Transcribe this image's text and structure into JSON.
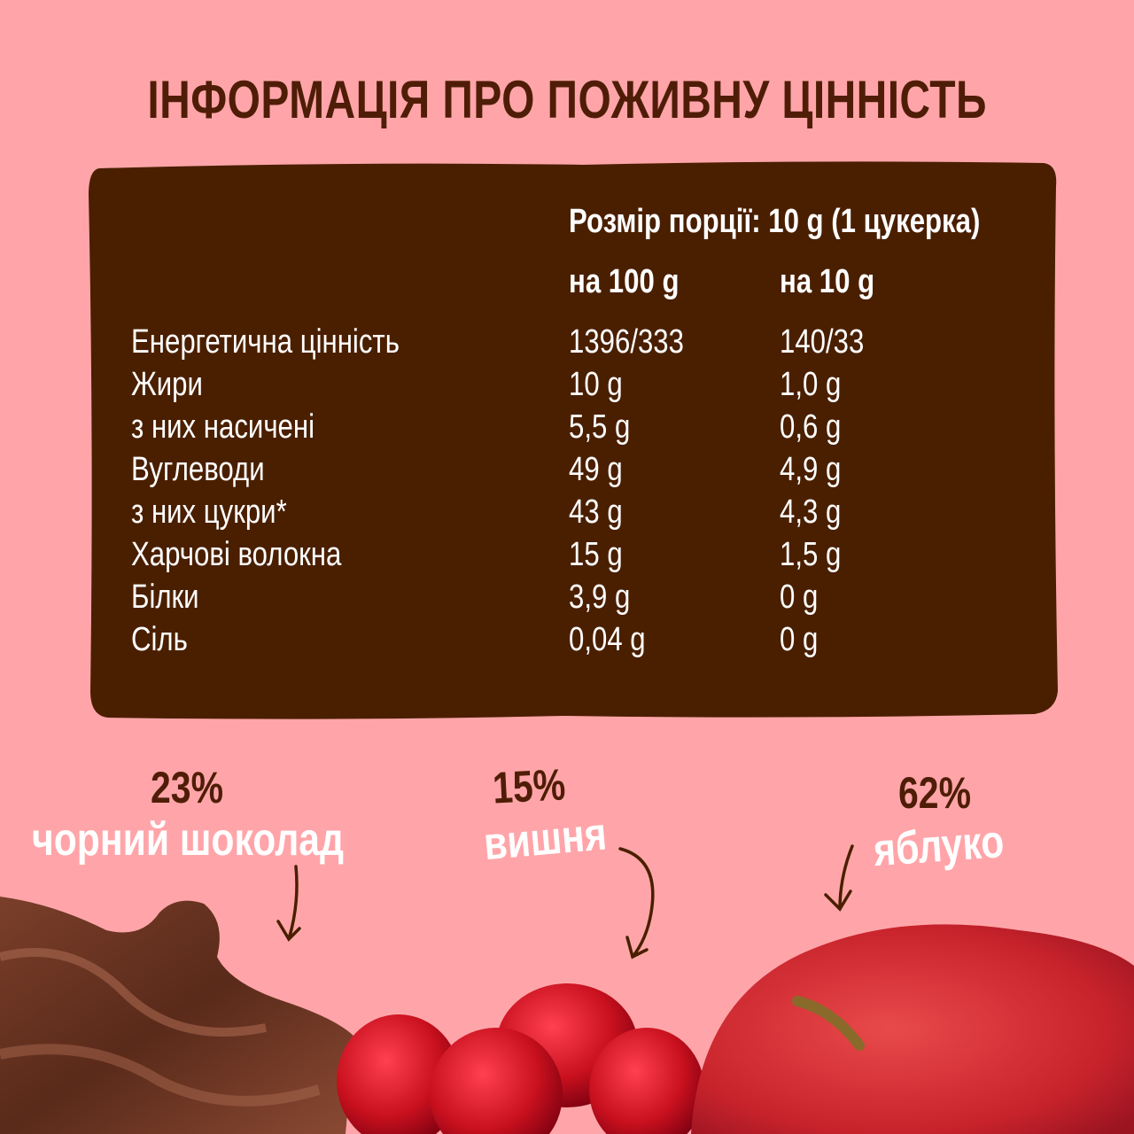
{
  "title": "ІНФОРМАЦІЯ ПРО ПОЖИВНУ ЦІННІСТЬ",
  "table": {
    "serving_size": "Розмір порції: 10 g (1 цукерка)",
    "col_per100": "на 100 g",
    "col_per10": "на 10 g",
    "rows": [
      {
        "label": "Енергетична цінність",
        "per100": "1396/333",
        "per10": "140/33"
      },
      {
        "label": "Жири",
        "per100": "10 g",
        "per10": "1,0 g"
      },
      {
        "label": "з них насичені",
        "per100": "5,5 g",
        "per10": "0,6 g"
      },
      {
        "label": "Вуглеводи",
        "per100": "49 g",
        "per10": "4,9 g"
      },
      {
        "label": "з них цукри*",
        "per100": "43 g",
        "per10": "4,3 g"
      },
      {
        "label": "Харчові волокна",
        "per100": "15 g",
        "per10": "1,5 g"
      },
      {
        "label": "Білки",
        "per100": "3,9 g",
        "per10": "0 g"
      },
      {
        "label": "Сіль",
        "per100": "0,04 g",
        "per10": "0 g"
      }
    ]
  },
  "ingredients": [
    {
      "percent": "23%",
      "name": "чорний шоколад",
      "icon": "chocolate-swirl"
    },
    {
      "percent": "15%",
      "name": "вишня",
      "icon": "cherries"
    },
    {
      "percent": "62%",
      "name": "яблуко",
      "icon": "apple"
    }
  ],
  "colors": {
    "background": "#ffa5a9",
    "panel": "#4a1f00",
    "title": "#4f1d07",
    "text": "#ffffff"
  }
}
